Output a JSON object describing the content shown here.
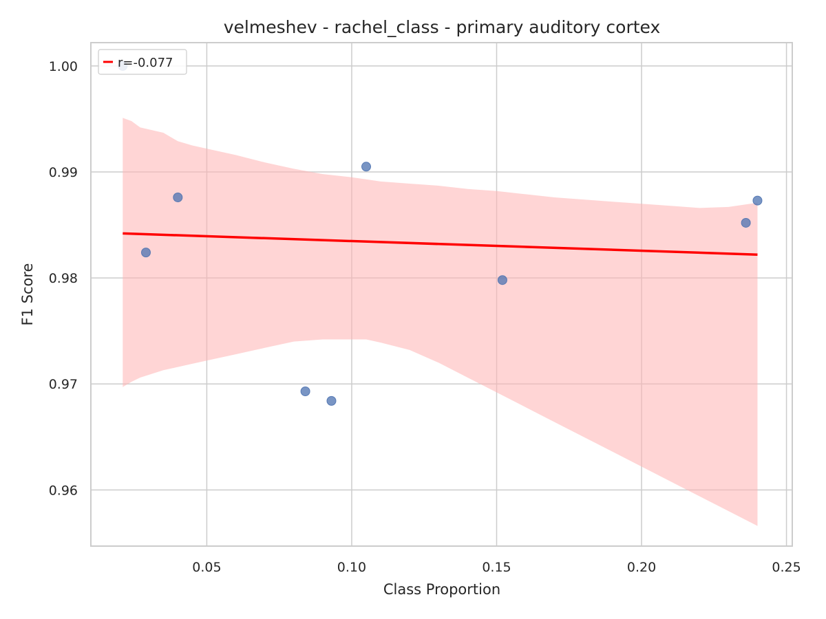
{
  "chart_data": {
    "type": "scatter",
    "title": "velmeshev - rachel_class - primary auditory cortex",
    "xlabel": "Class Proportion",
    "ylabel": "F1 Score",
    "xlim": [
      0.01,
      0.252
    ],
    "ylim": [
      0.9547,
      1.0022
    ],
    "xticks": [
      0.05,
      0.1,
      0.15,
      0.2,
      0.25
    ],
    "xtick_labels": [
      "0.05",
      "0.10",
      "0.15",
      "0.20",
      "0.25"
    ],
    "yticks": [
      0.96,
      0.97,
      0.98,
      0.99,
      1.0
    ],
    "ytick_labels": [
      "0.96",
      "0.97",
      "0.98",
      "0.99",
      "1.00"
    ],
    "grid": true,
    "legend_position": "top-left",
    "points": [
      {
        "x": 0.021,
        "y": 1.0
      },
      {
        "x": 0.029,
        "y": 0.9824
      },
      {
        "x": 0.04,
        "y": 0.9876
      },
      {
        "x": 0.084,
        "y": 0.9693
      },
      {
        "x": 0.093,
        "y": 0.9684
      },
      {
        "x": 0.105,
        "y": 0.9905
      },
      {
        "x": 0.152,
        "y": 0.9798
      },
      {
        "x": 0.236,
        "y": 0.9852
      },
      {
        "x": 0.24,
        "y": 0.9873
      }
    ],
    "regression": {
      "label": "r=-0.077",
      "x": [
        0.021,
        0.24
      ],
      "y": [
        0.9842,
        0.9822
      ]
    },
    "confidence_band": {
      "x": [
        0.021,
        0.024,
        0.027,
        0.035,
        0.04,
        0.045,
        0.05,
        0.06,
        0.07,
        0.08,
        0.09,
        0.1,
        0.105,
        0.11,
        0.12,
        0.13,
        0.14,
        0.15,
        0.16,
        0.17,
        0.18,
        0.19,
        0.2,
        0.21,
        0.22,
        0.23,
        0.24
      ],
      "upper": [
        0.9951,
        0.9948,
        0.9942,
        0.9937,
        0.9929,
        0.9925,
        0.9922,
        0.9916,
        0.9909,
        0.9903,
        0.9898,
        0.9895,
        0.9893,
        0.9891,
        0.9889,
        0.9887,
        0.9884,
        0.9882,
        0.9879,
        0.9876,
        0.9874,
        0.9872,
        0.987,
        0.9868,
        0.9866,
        0.9867,
        0.9871
      ],
      "lower": [
        0.9697,
        0.9702,
        0.9706,
        0.9713,
        0.9716,
        0.9719,
        0.9722,
        0.9728,
        0.9734,
        0.974,
        0.9742,
        0.9742,
        0.9742,
        0.9739,
        0.9732,
        0.972,
        0.9706,
        0.9692,
        0.9678,
        0.9664,
        0.965,
        0.9636,
        0.9622,
        0.9608,
        0.9594,
        0.958,
        0.9566
      ]
    },
    "colors": {
      "points": "#4c72b0",
      "regression": "#ff0000",
      "band": "#ffb3b3"
    }
  }
}
